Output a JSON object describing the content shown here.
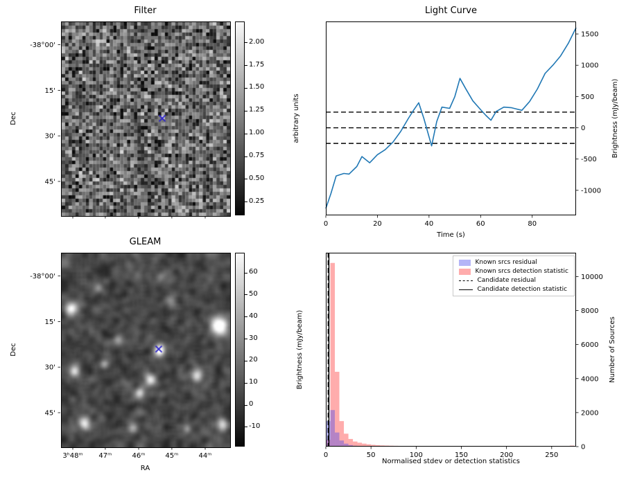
{
  "figure": {
    "background": "#ffffff"
  },
  "filter_panel": {
    "title": "Filter",
    "ylabel": "Dec",
    "yticks": [
      {
        "label": "-38°00'",
        "rel": 0.12
      },
      {
        "label": "15'",
        "rel": 0.355
      },
      {
        "label": "30'",
        "rel": 0.59
      },
      {
        "label": "45'",
        "rel": 0.825
      }
    ],
    "xticks": [
      {
        "label": "",
        "rel": 0.07
      },
      {
        "label": "",
        "rel": 0.263
      },
      {
        "label": "",
        "rel": 0.461
      },
      {
        "label": "",
        "rel": 0.658
      },
      {
        "label": "",
        "rel": 0.856
      }
    ],
    "colorbar": {
      "label": "arbitrary units",
      "vmin": 0.1,
      "vmax": 2.23,
      "ticks": [
        {
          "v": 2.0,
          "label": "2.00"
        },
        {
          "v": 1.75,
          "label": "1.75"
        },
        {
          "v": 1.5,
          "label": "1.50"
        },
        {
          "v": 1.25,
          "label": "1.25"
        },
        {
          "v": 1.0,
          "label": "1.00"
        },
        {
          "v": 0.75,
          "label": "0.75"
        },
        {
          "v": 0.5,
          "label": "0.50"
        },
        {
          "v": 0.25,
          "label": "0.25"
        }
      ]
    },
    "marker": {
      "rel_x": 0.597,
      "rel_y": 0.496,
      "color": "#2b22cc",
      "shape": "x"
    },
    "noise": {
      "seed": 42,
      "cols": 49,
      "rows": 56
    }
  },
  "gleam_panel": {
    "title": "GLEAM",
    "xlabel": "RA",
    "ylabel": "Dec",
    "yticks": [
      {
        "label": "-38°00'",
        "rel": 0.12
      },
      {
        "label": "15'",
        "rel": 0.355
      },
      {
        "label": "30'",
        "rel": 0.59
      },
      {
        "label": "45'",
        "rel": 0.825
      }
    ],
    "xticks": [
      {
        "label": "3ʰ48ᵐ",
        "rel": 0.07
      },
      {
        "label": "47ᵐ",
        "rel": 0.263
      },
      {
        "label": "46ᵐ",
        "rel": 0.461
      },
      {
        "label": "45ᵐ",
        "rel": 0.658
      },
      {
        "label": "44ᵐ",
        "rel": 0.856
      }
    ],
    "colorbar": {
      "label": "Brightness (mJy/beam)",
      "vmin": -19,
      "vmax": 69,
      "ticks": [
        {
          "v": 60,
          "label": "60"
        },
        {
          "v": 50,
          "label": "50"
        },
        {
          "v": 40,
          "label": "40"
        },
        {
          "v": 30,
          "label": "30"
        },
        {
          "v": 20,
          "label": "20"
        },
        {
          "v": 10,
          "label": "10"
        },
        {
          "v": 0,
          "label": "0"
        },
        {
          "v": -10,
          "label": "-10"
        }
      ]
    },
    "marker": {
      "rel_x": 0.576,
      "rel_y": 0.493,
      "color": "#2b22cc",
      "shape": "x"
    },
    "noise": {
      "seed": 7
    },
    "blobs": [
      [
        0.576,
        0.493,
        75,
        0.022
      ],
      [
        0.93,
        0.37,
        85,
        0.034
      ],
      [
        0.05,
        0.28,
        65,
        0.026
      ],
      [
        0.07,
        0.6,
        50,
        0.022
      ],
      [
        0.52,
        0.645,
        60,
        0.024
      ],
      [
        0.455,
        0.715,
        50,
        0.02
      ],
      [
        0.8,
        0.625,
        55,
        0.024
      ],
      [
        0.13,
        0.875,
        55,
        0.024
      ],
      [
        0.95,
        0.88,
        50,
        0.022
      ],
      [
        0.33,
        0.44,
        35,
        0.02
      ],
      [
        0.245,
        0.565,
        30,
        0.018
      ],
      [
        0.64,
        0.24,
        28,
        0.022
      ],
      [
        0.42,
        0.895,
        32,
        0.018
      ],
      [
        0.74,
        0.9,
        26,
        0.016
      ],
      [
        0.58,
        0.12,
        22,
        0.02
      ],
      [
        0.21,
        0.17,
        25,
        0.02
      ],
      [
        0.88,
        0.13,
        22,
        0.018
      ]
    ]
  },
  "chart_data": [
    {
      "id": "light_curve",
      "type": "line",
      "title": "Light Curve",
      "xlabel": "Time (s)",
      "ylabel": "Brightness (mJy/beam)",
      "xlim": [
        0,
        97
      ],
      "ylim": [
        -1400,
        1700
      ],
      "xticks": [
        0,
        20,
        40,
        60,
        80
      ],
      "yticks": [
        -1000,
        -500,
        0,
        500,
        1000,
        1500
      ],
      "line_color": "#1f77b4",
      "x": [
        0,
        2,
        4,
        7,
        9,
        12,
        14,
        17,
        20,
        23,
        26,
        29,
        32,
        34,
        36,
        38,
        41,
        43,
        45,
        48,
        50,
        52,
        54,
        57,
        60,
        62,
        64,
        66,
        69,
        72,
        74,
        76,
        79,
        82,
        85,
        88,
        91,
        94,
        97
      ],
      "y": [
        -1290,
        -1050,
        -770,
        -730,
        -740,
        -620,
        -460,
        -560,
        -430,
        -350,
        -230,
        -60,
        150,
        280,
        400,
        150,
        -290,
        100,
        330,
        310,
        500,
        790,
        640,
        430,
        290,
        200,
        120,
        260,
        330,
        320,
        300,
        280,
        420,
        620,
        870,
        1000,
        1150,
        1350,
        1600
      ],
      "hlines": {
        "values": [
          250,
          0,
          -250
        ],
        "style": "dashed",
        "color": "#000000"
      }
    },
    {
      "id": "histogram",
      "type": "bar",
      "xlabel": "Normalised stdev or detection statistics",
      "ylabel": "Number of Sources",
      "xlim": [
        0,
        277
      ],
      "ylim": [
        0,
        11400
      ],
      "xticks": [
        0,
        50,
        100,
        150,
        200,
        250
      ],
      "yticks": [
        0,
        2000,
        4000,
        6000,
        8000,
        10000
      ],
      "bin_width": 5,
      "series": [
        {
          "name": "Known srcs residual",
          "color": "rgba(70,70,235,0.40)",
          "values": [
            1500,
            2150,
            830,
            360,
            175,
            90,
            50,
            30,
            18,
            12,
            8,
            5,
            4,
            3,
            2,
            2,
            1,
            1,
            1,
            0,
            0,
            0,
            0,
            0,
            0,
            0,
            0,
            0,
            0,
            0,
            0,
            0,
            0,
            0,
            0,
            0,
            0,
            0,
            0,
            0,
            0,
            0,
            0,
            0,
            0,
            0,
            0,
            0,
            0,
            0,
            0,
            0,
            0,
            0,
            0
          ]
        },
        {
          "name": "Known srcs detection statistic",
          "color": "rgba(255,70,70,0.45)",
          "values": [
            400,
            10800,
            4400,
            1500,
            760,
            450,
            300,
            230,
            175,
            135,
            105,
            85,
            70,
            60,
            52,
            46,
            40,
            36,
            32,
            28,
            25,
            22,
            20,
            18,
            16,
            15,
            14,
            13,
            12,
            11,
            10,
            9,
            9,
            8,
            8,
            7,
            7,
            6,
            6,
            5,
            5,
            4,
            4,
            4,
            3,
            3,
            3,
            2,
            2,
            2,
            2,
            2,
            1,
            1,
            60
          ]
        }
      ],
      "vlines": [
        {
          "name": "Candidate residual",
          "x": 2.6,
          "style": "dashed"
        },
        {
          "name": "Candidate detection statistic",
          "x": 3.4,
          "style": "solid"
        }
      ],
      "legend": [
        {
          "type": "patch",
          "color": "rgba(70,70,235,0.40)",
          "label": "Known srcs residual"
        },
        {
          "type": "patch",
          "color": "rgba(255,70,70,0.45)",
          "label": "Known srcs detection statistic"
        },
        {
          "type": "dashed-line",
          "label": "Candidate residual"
        },
        {
          "type": "solid-line",
          "label": "Candidate detection statistic"
        }
      ],
      "legend_position": "upper right"
    }
  ]
}
